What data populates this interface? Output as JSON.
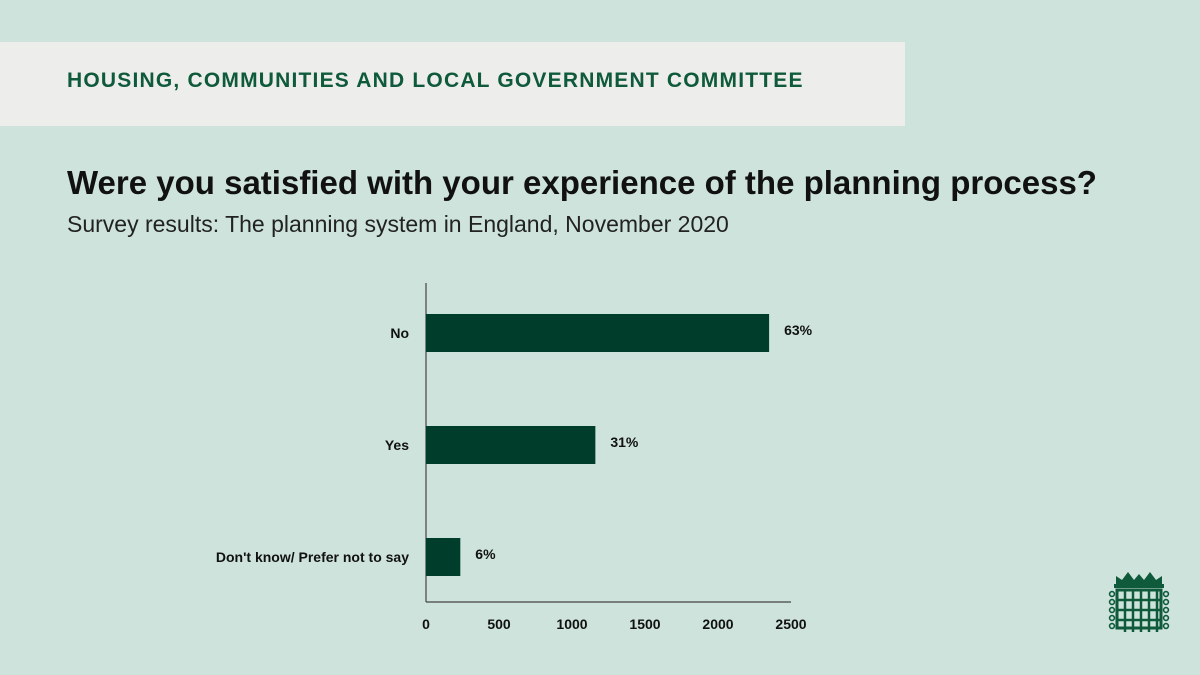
{
  "header": {
    "banner": "HOUSING, COMMUNITIES AND LOCAL GOVERNMENT COMMITTEE"
  },
  "colors": {
    "background": "#cde3dc",
    "banner": "#ededec",
    "banner_text": "#0e5a3a",
    "bar": "#003d2b"
  },
  "icons": {
    "logo": "portcullis-icon"
  },
  "chart_data": {
    "type": "bar",
    "orientation": "horizontal",
    "title": "Were you satisfied with your experience of the planning process?",
    "subtitle": "Survey results: The planning system in England, November 2020",
    "categories": [
      "No",
      "Yes",
      "Don't know/ Prefer not to say"
    ],
    "values": [
      2350,
      1160,
      235
    ],
    "data_labels": [
      "63%",
      "31%",
      "6%"
    ],
    "xlim": [
      0,
      2500
    ],
    "xticks": [
      0,
      500,
      1000,
      1500,
      2000,
      2500
    ],
    "grid": false,
    "legend": "none"
  }
}
